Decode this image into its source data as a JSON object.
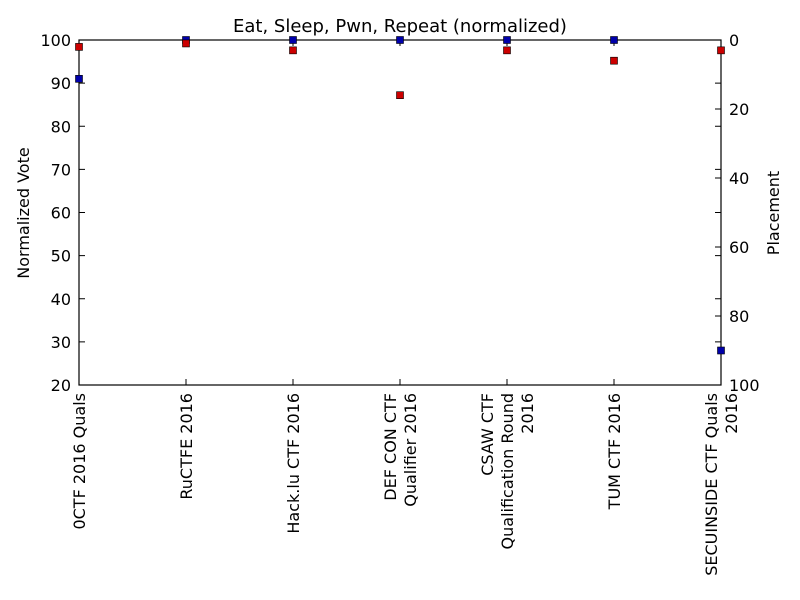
{
  "chart_data": {
    "type": "scatter",
    "title": "Eat, Sleep, Pwn, Repeat (normalized)",
    "categories": [
      [
        "0CTF 2016 Quals"
      ],
      [
        "RuCTFE 2016"
      ],
      [
        "Hack.lu CTF 2016"
      ],
      [
        "DEF CON CTF",
        "Qualifier 2016"
      ],
      [
        "CSAW CTF",
        "Qualification Round",
        "2016"
      ],
      [
        "TUM CTF 2016"
      ],
      [
        "SECUINSIDE CTF Quals",
        "2016"
      ]
    ],
    "left_axis": {
      "label": "Normalized Vote",
      "color": "#0000ff",
      "ylim": [
        20,
        100
      ],
      "ticks": [
        20,
        30,
        40,
        50,
        60,
        70,
        80,
        90,
        100
      ]
    },
    "right_axis": {
      "label": "Placement",
      "color": "#ff0000",
      "ylim": [
        100,
        0
      ],
      "inverted": true,
      "ticks": [
        0,
        20,
        40,
        60,
        80,
        100
      ]
    },
    "series": [
      {
        "name": "Normalized Vote",
        "axis": "left",
        "color": "#0000aa",
        "marker": "square",
        "values": [
          91,
          100,
          100,
          100,
          100,
          100,
          28
        ]
      },
      {
        "name": "Placement",
        "axis": "right",
        "color": "#cc0000",
        "marker": "square",
        "values": [
          2,
          1,
          3,
          16,
          3,
          6,
          3
        ]
      }
    ],
    "grid": false,
    "legend": "none"
  }
}
